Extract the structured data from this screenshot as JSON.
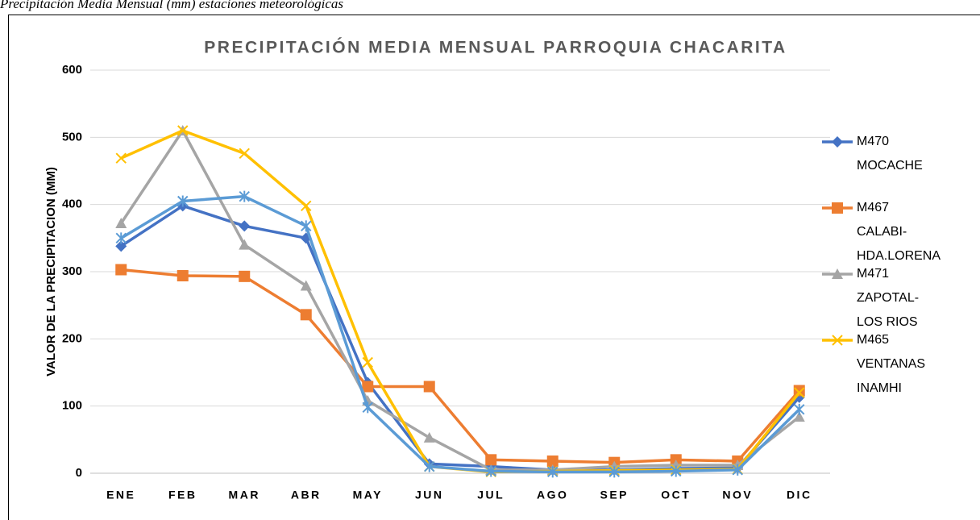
{
  "caption": "Precipitación Media Mensual (mm) estaciones meteorológicas",
  "chart_data": {
    "type": "line",
    "title": "PRECIPITACIÓN MEDIA MENSUAL PARROQUIA CHACARITA",
    "y_label": "VALOR DE LA PRECIPITACION (MM)",
    "categories": [
      "ENE",
      "FEB",
      "MAR",
      "ABR",
      "MAY",
      "JUN",
      "JUL",
      "AGO",
      "SEP",
      "OCT",
      "NOV",
      "DIC"
    ],
    "ylim": [
      0,
      600
    ],
    "yticks": [
      0,
      100,
      200,
      300,
      400,
      500,
      600
    ],
    "grid": true,
    "legend": "right",
    "series": [
      {
        "name": "M470 MOCACHE",
        "color": "#4472c4",
        "marker": "diamond",
        "values": [
          338,
          398,
          368,
          350,
          135,
          14,
          10,
          5,
          5,
          7,
          8,
          113
        ]
      },
      {
        "name": "M467 CALABI-HDA.LORENA",
        "color": "#ed7d31",
        "marker": "square",
        "values": [
          303,
          294,
          293,
          236,
          129,
          129,
          20,
          18,
          16,
          20,
          18,
          123
        ]
      },
      {
        "name": "M471 ZAPOTAL-LOS RIOS",
        "color": "#a5a5a5",
        "marker": "triangle",
        "values": [
          372,
          510,
          340,
          279,
          108,
          53,
          5,
          5,
          10,
          12,
          12,
          84
        ]
      },
      {
        "name": "M465 VENTANAS INAMHI",
        "color": "#ffc000",
        "marker": "x",
        "values": [
          469,
          510,
          476,
          398,
          165,
          10,
          2,
          3,
          4,
          5,
          6,
          120
        ]
      },
      {
        "color": "#5b9bd5",
        "marker": "star",
        "values": [
          350,
          405,
          412,
          368,
          98,
          10,
          3,
          2,
          2,
          3,
          5,
          95
        ]
      }
    ]
  }
}
